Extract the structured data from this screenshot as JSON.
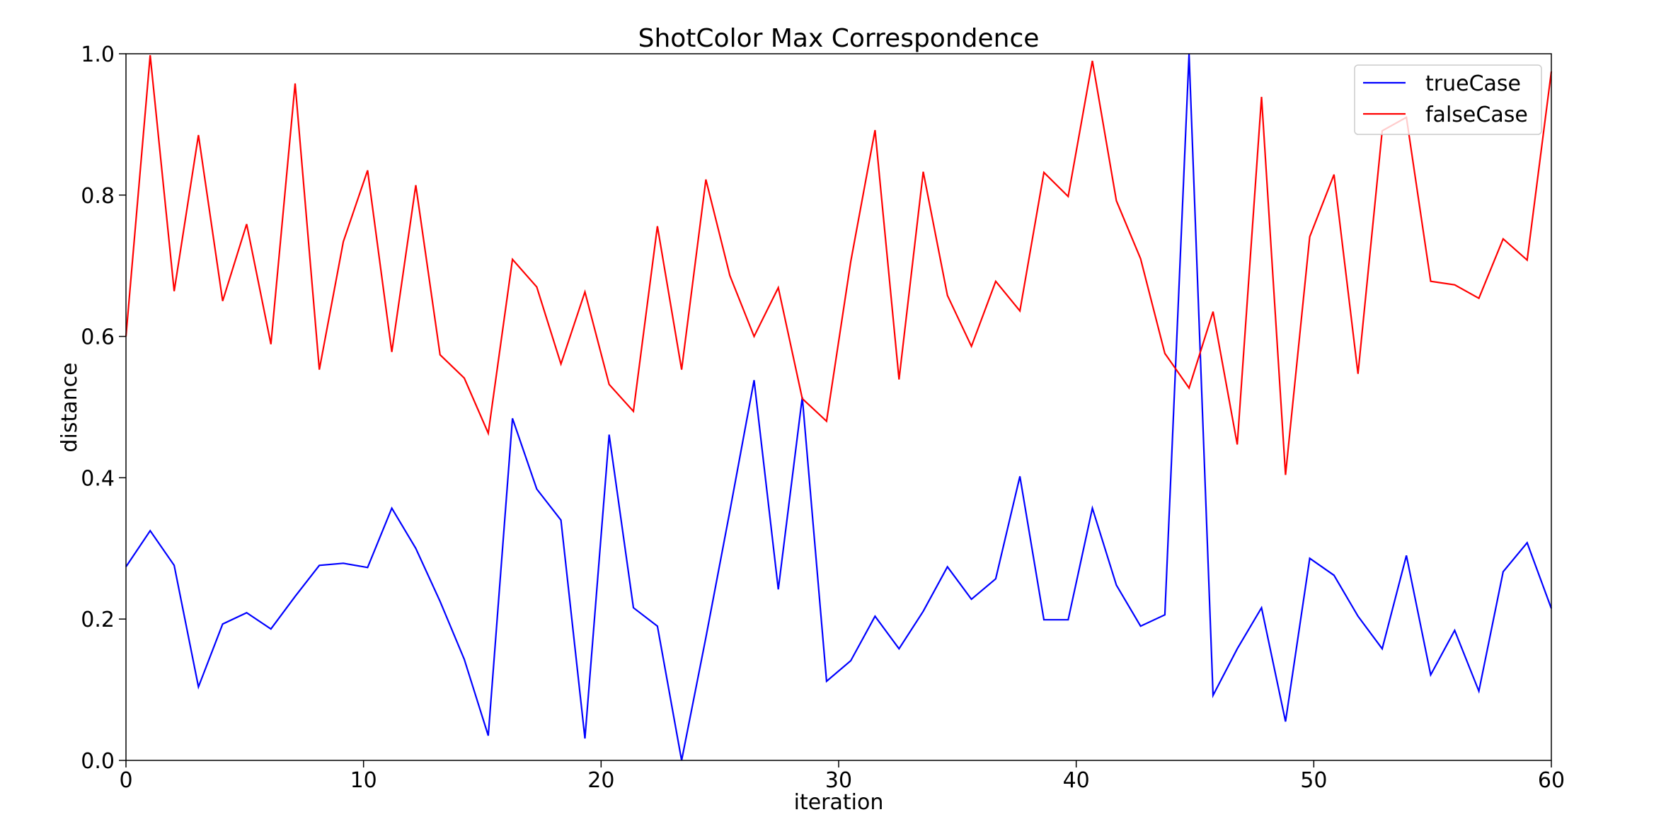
{
  "chart_data": {
    "type": "line",
    "title": "ShotColor Max Correspondence",
    "xlabel": "iteration",
    "ylabel": "distance",
    "xlim": [
      0,
      60
    ],
    "ylim": [
      0.0,
      1.0
    ],
    "xticks": [
      "0",
      "10",
      "20",
      "30",
      "40",
      "50",
      "60"
    ],
    "yticks": [
      "0.0",
      "0.2",
      "0.4",
      "0.6",
      "0.8",
      "1.0"
    ],
    "grid": false,
    "legend_position": "top-right",
    "x": [
      0,
      1.02,
      2.03,
      3.05,
      4.07,
      5.08,
      6.1,
      7.12,
      8.14,
      9.15,
      10.17,
      11.19,
      12.2,
      13.22,
      14.24,
      15.25,
      16.27,
      17.29,
      18.31,
      19.32,
      20.34,
      21.36,
      22.37,
      23.39,
      24.41,
      25.42,
      26.44,
      27.46,
      28.47,
      29.49,
      30.51,
      31.53,
      32.54,
      33.56,
      34.58,
      35.59,
      36.61,
      37.63,
      38.64,
      39.66,
      40.68,
      41.69,
      42.71,
      43.73,
      44.75,
      45.76,
      46.78,
      47.8,
      48.81,
      49.83,
      50.85,
      51.86,
      52.88,
      53.9,
      54.92,
      55.93,
      56.95,
      57.97,
      58.98,
      60
    ],
    "series": [
      {
        "name": "trueCase",
        "color": "#0000ff",
        "values": [
          0.274,
          0.325,
          0.276,
          0.104,
          0.193,
          0.209,
          0.186,
          0.232,
          0.276,
          0.279,
          0.273,
          0.357,
          0.3,
          0.225,
          0.143,
          0.035,
          0.484,
          0.384,
          0.34,
          0.031,
          0.461,
          0.216,
          0.19,
          0.0,
          0.174,
          0.353,
          0.538,
          0.242,
          0.514,
          0.112,
          0.141,
          0.204,
          0.158,
          0.211,
          0.274,
          0.228,
          0.257,
          0.402,
          0.199,
          0.199,
          0.357,
          0.248,
          0.19,
          0.206,
          1.0,
          0.092,
          0.158,
          0.216,
          0.055,
          0.286,
          0.262,
          0.204,
          0.158,
          0.29,
          0.121,
          0.184,
          0.098,
          0.267,
          0.308,
          0.215
        ]
      },
      {
        "name": "falseCase",
        "color": "#ff0000",
        "values": [
          0.6,
          0.998,
          0.664,
          0.885,
          0.65,
          0.759,
          0.589,
          0.958,
          0.553,
          0.734,
          0.835,
          0.578,
          0.814,
          0.574,
          0.541,
          0.463,
          0.709,
          0.67,
          0.561,
          0.663,
          0.532,
          0.494,
          0.756,
          0.553,
          0.822,
          0.686,
          0.6,
          0.669,
          0.512,
          0.48,
          0.706,
          0.892,
          0.539,
          0.833,
          0.658,
          0.586,
          0.678,
          0.636,
          0.832,
          0.798,
          0.99,
          0.792,
          0.71,
          0.576,
          0.527,
          0.635,
          0.447,
          0.939,
          0.404,
          0.741,
          0.829,
          0.547,
          0.891,
          0.91,
          0.678,
          0.673,
          0.654,
          0.738,
          0.708,
          0.975
        ]
      }
    ]
  }
}
